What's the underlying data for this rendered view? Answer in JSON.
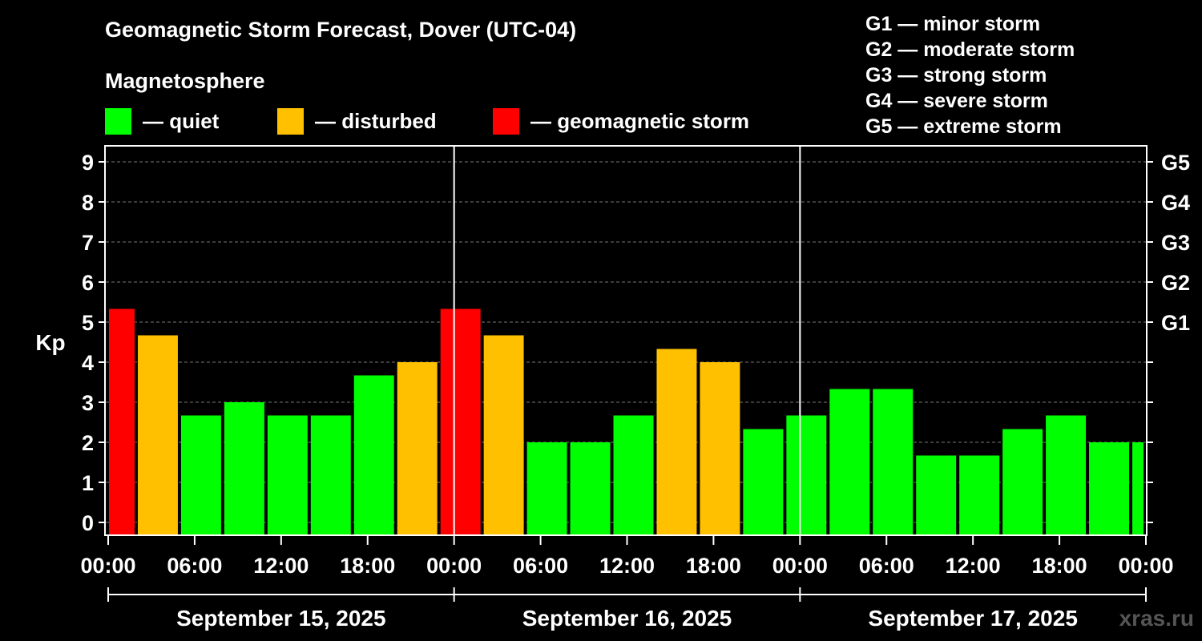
{
  "title": "Geomagnetic Storm Forecast, Dover (UTC-04)",
  "legend": {
    "title": "Magnetosphere",
    "items": [
      {
        "label": "— quiet",
        "color": "#00ff00"
      },
      {
        "label": "— disturbed",
        "color": "#ffc000"
      },
      {
        "label": "— geomagnetic storm",
        "color": "#ff0000"
      }
    ]
  },
  "g_scale": [
    "G1 — minor storm",
    "G2 — moderate storm",
    "G3 — strong storm",
    "G4 — severe storm",
    "G5 — extreme storm"
  ],
  "watermark": "xras.ru",
  "chart_data": {
    "type": "bar",
    "ylabel": "Kp",
    "xlabel": "",
    "ylim": [
      0,
      9
    ],
    "yticks": [
      "0",
      "1",
      "2",
      "3",
      "4",
      "5",
      "6",
      "7",
      "8",
      "9"
    ],
    "right_ticks": [
      {
        "kp": 5,
        "label": "G1"
      },
      {
        "kp": 6,
        "label": "G2"
      },
      {
        "kp": 7,
        "label": "G3"
      },
      {
        "kp": 8,
        "label": "G4"
      },
      {
        "kp": 9,
        "label": "G5"
      }
    ],
    "grid": "horizontal dashed",
    "time_range_hours": [
      0,
      72
    ],
    "xticks": [
      {
        "h": 0,
        "label": "00:00"
      },
      {
        "h": 6,
        "label": "06:00"
      },
      {
        "h": 12,
        "label": "12:00"
      },
      {
        "h": 18,
        "label": "18:00"
      },
      {
        "h": 24,
        "label": "00:00"
      },
      {
        "h": 30,
        "label": "06:00"
      },
      {
        "h": 36,
        "label": "12:00"
      },
      {
        "h": 42,
        "label": "18:00"
      },
      {
        "h": 48,
        "label": "00:00"
      },
      {
        "h": 54,
        "label": "06:00"
      },
      {
        "h": 60,
        "label": "12:00"
      },
      {
        "h": 66,
        "label": "18:00"
      },
      {
        "h": 72,
        "label": "00:00"
      }
    ],
    "days": [
      {
        "label": "September 15, 2025",
        "start": 0,
        "end": 24
      },
      {
        "label": "September 16, 2025",
        "start": 24,
        "end": 48
      },
      {
        "label": "September 17, 2025",
        "start": 48,
        "end": 72
      }
    ],
    "bars": [
      {
        "start": 0,
        "end": 2,
        "kp": 5.33,
        "level": "storm"
      },
      {
        "start": 2,
        "end": 5,
        "kp": 4.67,
        "level": "disturbed"
      },
      {
        "start": 5,
        "end": 8,
        "kp": 2.67,
        "level": "quiet"
      },
      {
        "start": 8,
        "end": 11,
        "kp": 3.0,
        "level": "quiet"
      },
      {
        "start": 11,
        "end": 14,
        "kp": 2.67,
        "level": "quiet"
      },
      {
        "start": 14,
        "end": 17,
        "kp": 2.67,
        "level": "quiet"
      },
      {
        "start": 17,
        "end": 20,
        "kp": 3.67,
        "level": "quiet"
      },
      {
        "start": 20,
        "end": 23,
        "kp": 4.0,
        "level": "disturbed"
      },
      {
        "start": 23,
        "end": 26,
        "kp": 5.33,
        "level": "storm"
      },
      {
        "start": 26,
        "end": 29,
        "kp": 4.67,
        "level": "disturbed"
      },
      {
        "start": 29,
        "end": 32,
        "kp": 2.0,
        "level": "quiet"
      },
      {
        "start": 32,
        "end": 35,
        "kp": 2.0,
        "level": "quiet"
      },
      {
        "start": 35,
        "end": 38,
        "kp": 2.67,
        "level": "quiet"
      },
      {
        "start": 38,
        "end": 41,
        "kp": 4.33,
        "level": "disturbed"
      },
      {
        "start": 41,
        "end": 44,
        "kp": 4.0,
        "level": "disturbed"
      },
      {
        "start": 44,
        "end": 47,
        "kp": 2.33,
        "level": "quiet"
      },
      {
        "start": 47,
        "end": 50,
        "kp": 2.67,
        "level": "quiet"
      },
      {
        "start": 50,
        "end": 53,
        "kp": 3.33,
        "level": "quiet"
      },
      {
        "start": 53,
        "end": 56,
        "kp": 3.33,
        "level": "quiet"
      },
      {
        "start": 56,
        "end": 59,
        "kp": 1.67,
        "level": "quiet"
      },
      {
        "start": 59,
        "end": 62,
        "kp": 1.67,
        "level": "quiet"
      },
      {
        "start": 62,
        "end": 65,
        "kp": 2.33,
        "level": "quiet"
      },
      {
        "start": 65,
        "end": 68,
        "kp": 2.67,
        "level": "quiet"
      },
      {
        "start": 68,
        "end": 71,
        "kp": 2.0,
        "level": "quiet"
      },
      {
        "start": 71,
        "end": 72,
        "kp": 2.0,
        "level": "quiet"
      }
    ],
    "level_colors": {
      "quiet": "#00ff00",
      "disturbed": "#ffc000",
      "storm": "#ff0000"
    }
  }
}
